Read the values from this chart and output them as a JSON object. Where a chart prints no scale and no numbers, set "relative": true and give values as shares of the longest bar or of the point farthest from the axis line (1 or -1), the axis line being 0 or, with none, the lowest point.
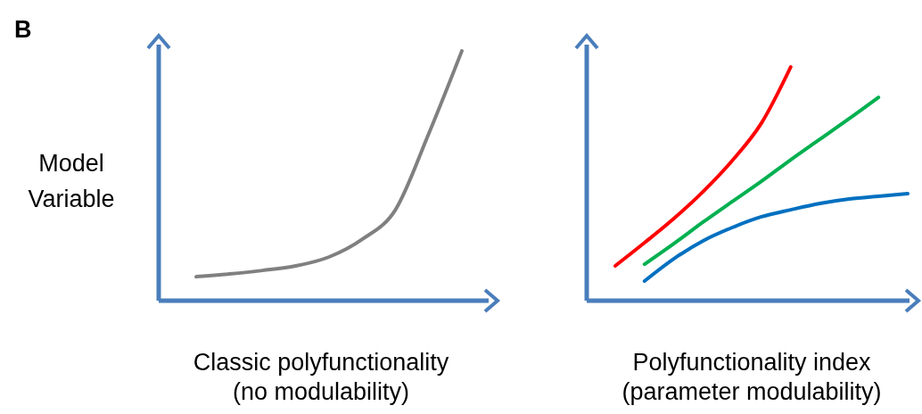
{
  "chart_data": [
    {
      "type": "line",
      "relative": true,
      "annotations": [
        "B"
      ],
      "ylabel": "Model Variable",
      "xlabel": "Classic polyfunctionality (no modulability)",
      "categories": [
        null,
        null,
        null,
        null,
        null,
        null,
        null,
        null,
        null
      ],
      "series": [
        {
          "color": "#808080",
          "values": [
            0.096,
            0.107,
            0.121,
            0.139,
            0.175,
            0.246,
            0.364,
            0.668,
            1
          ]
        }
      ]
    },
    {
      "type": "line",
      "relative": true,
      "xlabel": "Polyfunctionality index (parameter modulability)",
      "categories": [
        null,
        null,
        null,
        null,
        null,
        null,
        null,
        null,
        null,
        null,
        null
      ],
      "series": [
        {
          "color": "#ff0000",
          "values": [
            0.149,
            0.248,
            0.351,
            0.466,
            0.599,
            0.76,
            1,
            null,
            null,
            null,
            null
          ]
        },
        {
          "color": "#00b050",
          "values": [
            null,
            0.156,
            0.244,
            0.336,
            0.424,
            0.511,
            0.603,
            0.691,
            0.779,
            0.87,
            null
          ]
        },
        {
          "color": "#0070c0",
          "values": [
            null,
            0.084,
            0.179,
            0.256,
            0.313,
            0.359,
            0.389,
            0.416,
            0.435,
            0.447,
            0.458
          ]
        }
      ]
    }
  ]
}
